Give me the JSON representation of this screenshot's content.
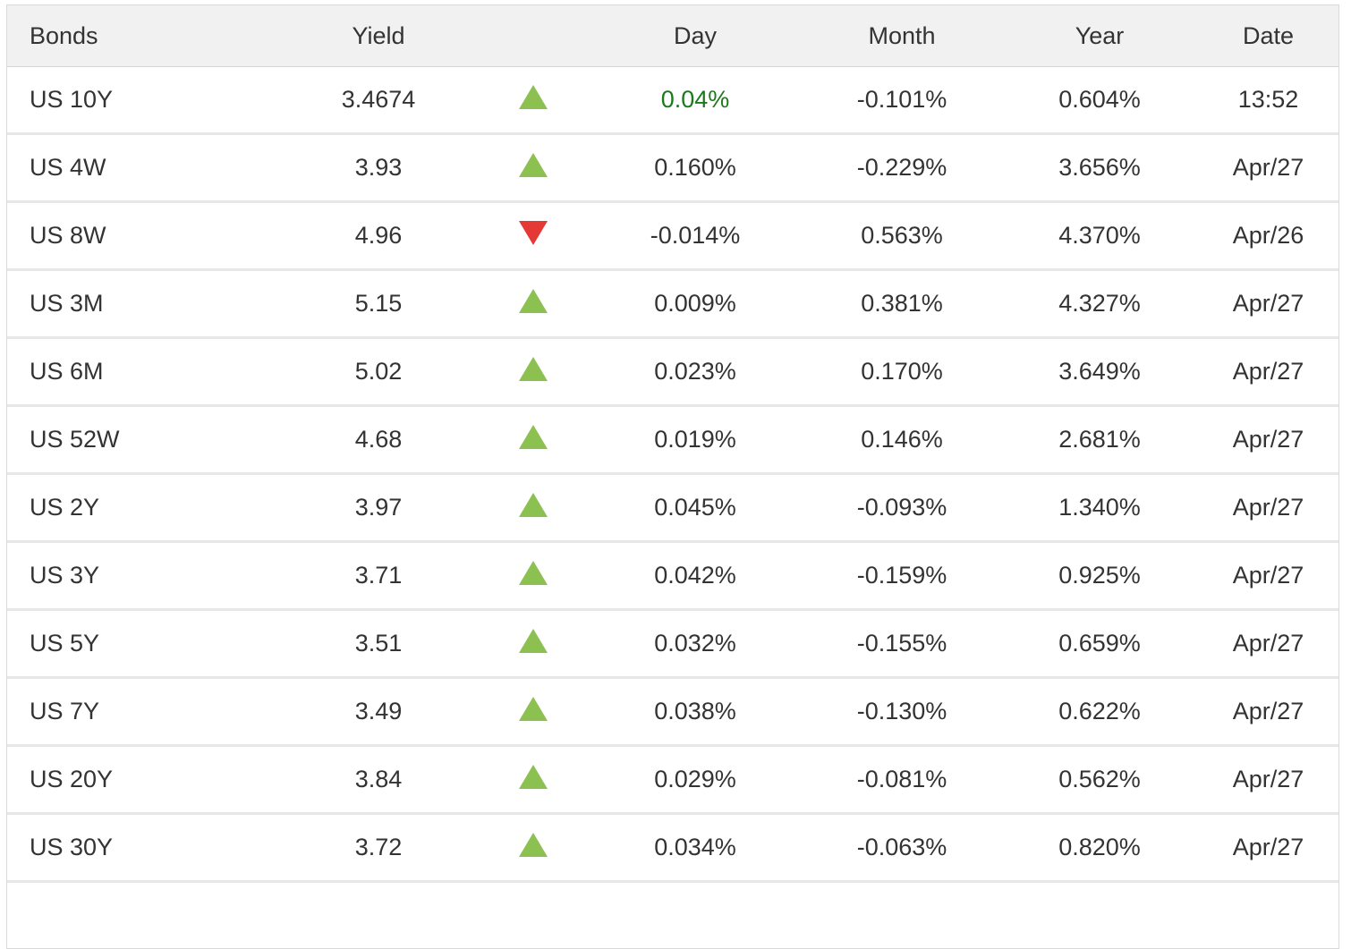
{
  "colors": {
    "header_bg": "#f1f1f2",
    "row_bg": "#ffffff",
    "outer_border": "#d9d9d9",
    "row_separator": "#e7e7e7",
    "text": "#333333",
    "up_arrow_green": "#8cc152",
    "down_arrow_red": "#e53935",
    "day_highlight_green": "#1a7a1a"
  },
  "table": {
    "headers": [
      "Bonds",
      "Yield",
      "Day",
      "Month",
      "Year",
      "Date"
    ],
    "rows": [
      {
        "bond": "US 10Y",
        "yield": "3.4674",
        "direction": "up",
        "day": "0.04%",
        "day_highlighted": true,
        "month": "-0.101%",
        "year": "0.604%",
        "date": "13:52"
      },
      {
        "bond": "US 4W",
        "yield": "3.93",
        "direction": "up",
        "day": "0.160%",
        "day_highlighted": false,
        "month": "-0.229%",
        "year": "3.656%",
        "date": "Apr/27"
      },
      {
        "bond": "US 8W",
        "yield": "4.96",
        "direction": "down",
        "day": "-0.014%",
        "day_highlighted": false,
        "month": "0.563%",
        "year": "4.370%",
        "date": "Apr/26"
      },
      {
        "bond": "US 3M",
        "yield": "5.15",
        "direction": "up",
        "day": "0.009%",
        "day_highlighted": false,
        "month": "0.381%",
        "year": "4.327%",
        "date": "Apr/27"
      },
      {
        "bond": "US 6M",
        "yield": "5.02",
        "direction": "up",
        "day": "0.023%",
        "day_highlighted": false,
        "month": "0.170%",
        "year": "3.649%",
        "date": "Apr/27"
      },
      {
        "bond": "US 52W",
        "yield": "4.68",
        "direction": "up",
        "day": "0.019%",
        "day_highlighted": false,
        "month": "0.146%",
        "year": "2.681%",
        "date": "Apr/27"
      },
      {
        "bond": "US 2Y",
        "yield": "3.97",
        "direction": "up",
        "day": "0.045%",
        "day_highlighted": false,
        "month": "-0.093%",
        "year": "1.340%",
        "date": "Apr/27"
      },
      {
        "bond": "US 3Y",
        "yield": "3.71",
        "direction": "up",
        "day": "0.042%",
        "day_highlighted": false,
        "month": "-0.159%",
        "year": "0.925%",
        "date": "Apr/27"
      },
      {
        "bond": "US 5Y",
        "yield": "3.51",
        "direction": "up",
        "day": "0.032%",
        "day_highlighted": false,
        "month": "-0.155%",
        "year": "0.659%",
        "date": "Apr/27"
      },
      {
        "bond": "US 7Y",
        "yield": "3.49",
        "direction": "up",
        "day": "0.038%",
        "day_highlighted": false,
        "month": "-0.130%",
        "year": "0.622%",
        "date": "Apr/27"
      },
      {
        "bond": "US 20Y",
        "yield": "3.84",
        "direction": "up",
        "day": "0.029%",
        "day_highlighted": false,
        "month": "-0.081%",
        "year": "0.562%",
        "date": "Apr/27"
      },
      {
        "bond": "US 30Y",
        "yield": "3.72",
        "direction": "up",
        "day": "0.034%",
        "day_highlighted": false,
        "month": "-0.063%",
        "year": "0.820%",
        "date": "Apr/27"
      }
    ]
  },
  "chart_data": {
    "type": "table",
    "columns": [
      "Bonds",
      "Yield",
      "Day",
      "Month",
      "Year",
      "Date"
    ],
    "rows": [
      [
        "US 10Y",
        "3.4674",
        "0.04%",
        "-0.101%",
        "0.604%",
        "13:52"
      ],
      [
        "US 4W",
        "3.93",
        "0.160%",
        "-0.229%",
        "3.656%",
        "Apr/27"
      ],
      [
        "US 8W",
        "4.96",
        "-0.014%",
        "0.563%",
        "4.370%",
        "Apr/26"
      ],
      [
        "US 3M",
        "5.15",
        "0.009%",
        "0.381%",
        "4.327%",
        "Apr/27"
      ],
      [
        "US 6M",
        "5.02",
        "0.023%",
        "0.170%",
        "3.649%",
        "Apr/27"
      ],
      [
        "US 52W",
        "4.68",
        "0.019%",
        "0.146%",
        "2.681%",
        "Apr/27"
      ],
      [
        "US 2Y",
        "3.97",
        "0.045%",
        "-0.093%",
        "1.340%",
        "Apr/27"
      ],
      [
        "US 3Y",
        "3.71",
        "0.042%",
        "-0.159%",
        "0.925%",
        "Apr/27"
      ],
      [
        "US 5Y",
        "3.51",
        "0.032%",
        "-0.155%",
        "0.659%",
        "Apr/27"
      ],
      [
        "US 7Y",
        "3.49",
        "0.038%",
        "-0.130%",
        "0.622%",
        "Apr/27"
      ],
      [
        "US 20Y",
        "3.84",
        "0.029%",
        "-0.081%",
        "0.562%",
        "Apr/27"
      ],
      [
        "US 30Y",
        "3.72",
        "0.034%",
        "-0.063%",
        "0.820%",
        "Apr/27"
      ]
    ]
  }
}
